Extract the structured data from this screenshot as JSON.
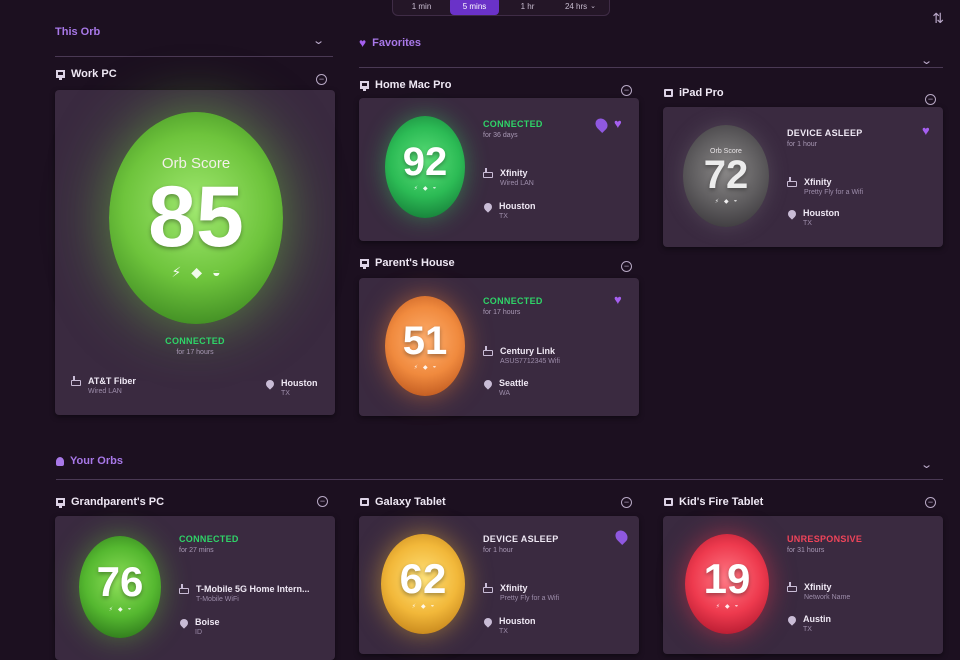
{
  "time_range": {
    "options": [
      {
        "label": "1 min"
      },
      {
        "label": "5 mins"
      },
      {
        "label": "1 hr"
      },
      {
        "label": "24 hrs"
      }
    ],
    "selected": "5 mins"
  },
  "sections": {
    "this_orb": "This Orb",
    "favorites": "Favorites",
    "your_orbs": "Your Orbs"
  },
  "this_orb": {
    "name": "Work PC",
    "orb_label": "Orb Score",
    "score": "85",
    "status": "CONNECTED",
    "duration": "for 17 hours",
    "isp": "AT&T Fiber",
    "connection": "Wired LAN",
    "city": "Houston",
    "region": "TX",
    "orb_color": "#6ec43c"
  },
  "favorites": [
    {
      "name": "Home Mac Pro",
      "score": "92",
      "status": "CONNECTED",
      "duration": "for 36 days",
      "isp": "Xfinity",
      "connection": "Wired LAN",
      "city": "Houston",
      "region": "TX",
      "orb_color": "#2cbb55"
    },
    {
      "name": "iPad Pro",
      "orb_label": "Orb Score",
      "score": "72",
      "status": "DEVICE ASLEEP",
      "duration": "for 1 hour",
      "isp": "Xfinity",
      "connection": "Pretty Fly for a Wifi",
      "city": "Houston",
      "region": "TX",
      "orb_color": "#5e5c5e"
    },
    {
      "name": "Parent's House",
      "score": "51",
      "status": "CONNECTED",
      "duration": "for 17 hours",
      "isp": "Century Link",
      "connection": "ASUS7712345 Wifi",
      "city": "Seattle",
      "region": "WA",
      "orb_color": "#f08a3e"
    }
  ],
  "your_orbs": [
    {
      "name": "Grandparent's PC",
      "score": "76",
      "status": "CONNECTED",
      "duration": "for 27 mins",
      "isp": "T-Mobile 5G Home Intern...",
      "connection": "T-Mobile WiFi",
      "city": "Boise",
      "region": "ID",
      "orb_color": "#55b830"
    },
    {
      "name": "Galaxy Tablet",
      "score": "62",
      "status": "DEVICE ASLEEP",
      "duration": "for 1 hour",
      "isp": "Xfinity",
      "connection": "Pretty Fly for a Wifi",
      "city": "Houston",
      "region": "TX",
      "orb_color": "#f2b83a"
    },
    {
      "name": "Kid's Fire Tablet",
      "score": "19",
      "status": "UNRESPONSIVE",
      "duration": "for 31 hours",
      "isp": "Xfinity",
      "connection": "Network Name",
      "city": "Austin",
      "region": "TX",
      "orb_color": "#ee3a4e"
    }
  ],
  "icons": {
    "speed": "⚡",
    "diamond": "◆",
    "gauge": "◒",
    "heart": "♥",
    "chevron": "⌄",
    "swap": "⇅"
  },
  "colors": {
    "connected": "#2fd468",
    "unresponsive": "#f0445a",
    "accent": "#a878e8",
    "active_tab": "#6a32c8"
  }
}
